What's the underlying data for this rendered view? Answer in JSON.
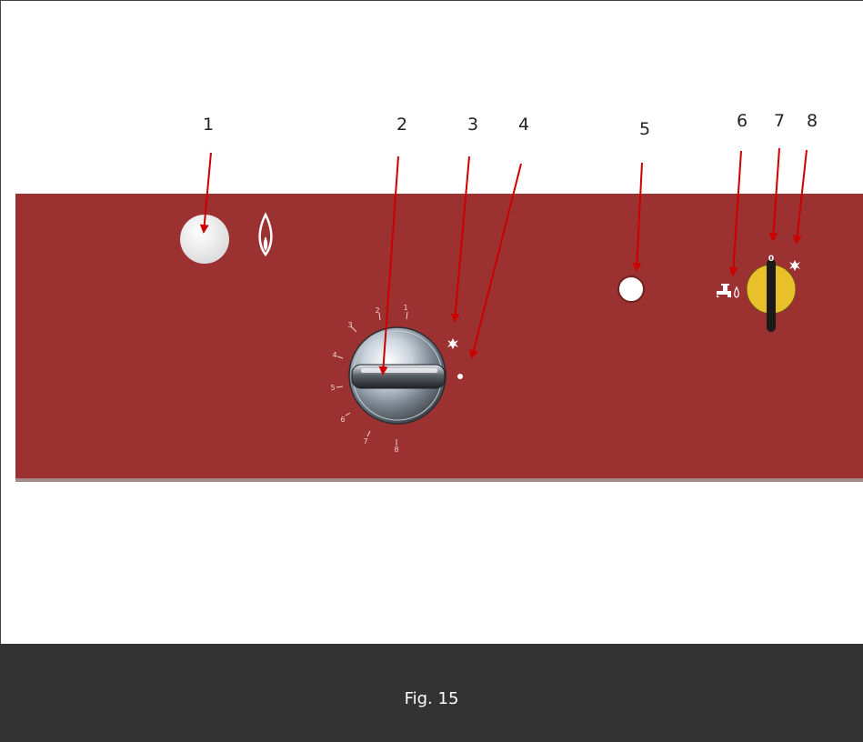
{
  "colors": {
    "panel": "#9b3130",
    "arrow": "#cc0000",
    "selector": "#e8c02a",
    "caption_bar": "#333333"
  },
  "callouts": [
    "1",
    "2",
    "3",
    "4",
    "5",
    "6",
    "7",
    "8"
  ],
  "dial_scale": [
    "1",
    "2",
    "3",
    "4",
    "5",
    "6",
    "7",
    "8"
  ],
  "selector_zero": "0",
  "icons": {
    "gas_button": "gas-flame-icon",
    "spark": "spark-icon",
    "tap": "water-tap-icon"
  },
  "caption": "Fig. 15"
}
